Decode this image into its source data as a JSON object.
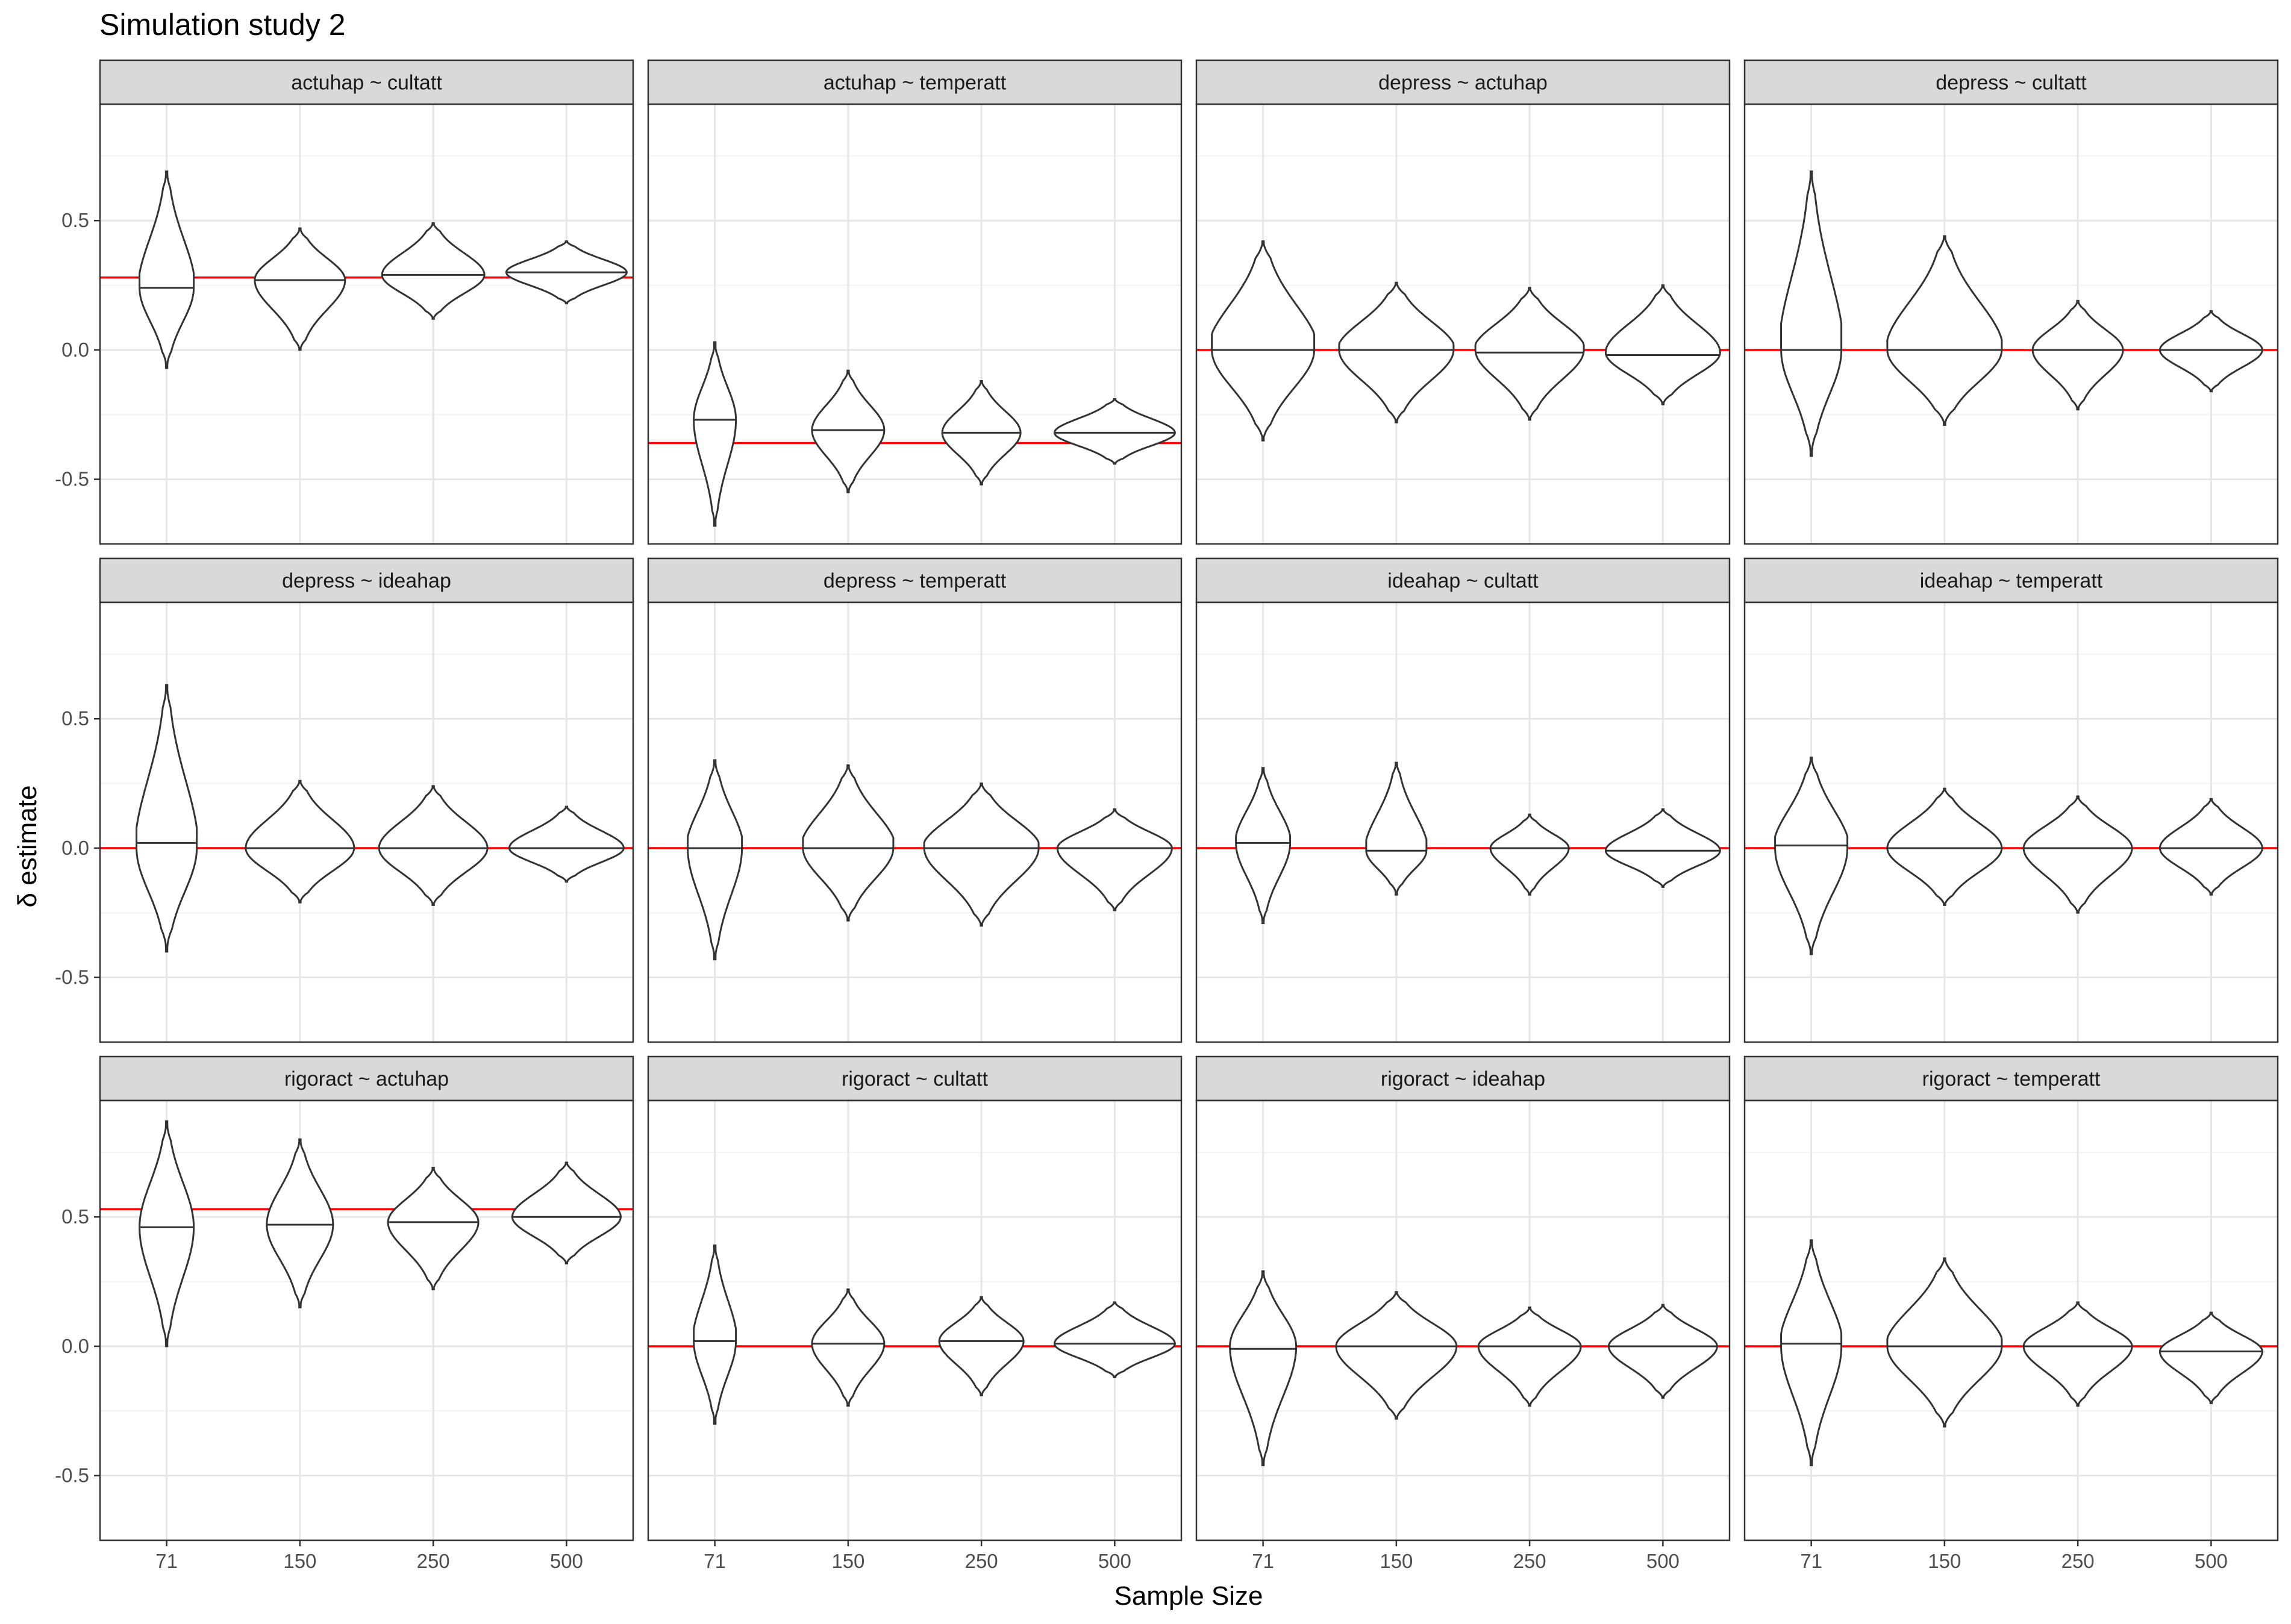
{
  "chart_data": {
    "type": "violin",
    "title": "Simulation study 2",
    "xlabel": "Sample Size",
    "ylabel": "δ estimate",
    "categories": [
      "71",
      "150",
      "250",
      "500"
    ],
    "ylim": [
      -0.75,
      0.95
    ],
    "yticks": [
      -0.5,
      0.0,
      0.5
    ],
    "ytick_labels": [
      "-0.5",
      "0.0",
      "0.5"
    ],
    "grid": true,
    "reference_line_color": "#ff0000",
    "panels": [
      {
        "label": "actuhap ~ cultatt",
        "ref": 0.28,
        "violins": [
          {
            "min": -0.07,
            "max": 0.69,
            "median": 0.24,
            "mode": 0.24,
            "skew": 0.2,
            "width": 0.45
          },
          {
            "min": 0.0,
            "max": 0.47,
            "median": 0.27,
            "mode": 0.27,
            "skew": 0.0,
            "width": 0.75
          },
          {
            "min": 0.12,
            "max": 0.49,
            "median": 0.29,
            "mode": 0.29,
            "skew": 0.0,
            "width": 0.85
          },
          {
            "min": 0.18,
            "max": 0.42,
            "median": 0.3,
            "mode": 0.3,
            "skew": 0.0,
            "width": 1.0
          }
        ]
      },
      {
        "label": "actuhap ~ temperatt",
        "ref": -0.36,
        "violins": [
          {
            "min": -0.68,
            "max": 0.03,
            "median": -0.27,
            "mode": -0.27,
            "skew": 0.0,
            "width": 0.35
          },
          {
            "min": -0.55,
            "max": -0.08,
            "median": -0.31,
            "mode": -0.31,
            "skew": 0.0,
            "width": 0.6
          },
          {
            "min": -0.52,
            "max": -0.12,
            "median": -0.32,
            "mode": -0.32,
            "skew": 0.0,
            "width": 0.65
          },
          {
            "min": -0.44,
            "max": -0.19,
            "median": -0.32,
            "mode": -0.32,
            "skew": 0.0,
            "width": 1.0
          }
        ]
      },
      {
        "label": "depress ~ actuhap",
        "ref": 0.0,
        "violins": [
          {
            "min": -0.35,
            "max": 0.42,
            "median": 0.0,
            "mode": 0.0,
            "skew": 0.3,
            "width": 0.85
          },
          {
            "min": -0.28,
            "max": 0.26,
            "median": 0.0,
            "mode": 0.0,
            "skew": 0.1,
            "width": 0.95
          },
          {
            "min": -0.27,
            "max": 0.24,
            "median": -0.01,
            "mode": 0.0,
            "skew": 0.1,
            "width": 0.9
          },
          {
            "min": -0.21,
            "max": 0.25,
            "median": -0.02,
            "mode": -0.01,
            "skew": 0.0,
            "width": 0.95
          }
        ]
      },
      {
        "label": "depress ~ cultatt",
        "ref": 0.0,
        "violins": [
          {
            "min": -0.41,
            "max": 0.69,
            "median": 0.0,
            "mode": 0.0,
            "skew": 0.3,
            "width": 0.5
          },
          {
            "min": -0.29,
            "max": 0.44,
            "median": 0.0,
            "mode": 0.0,
            "skew": 0.1,
            "width": 0.95
          },
          {
            "min": -0.23,
            "max": 0.19,
            "median": 0.0,
            "mode": 0.0,
            "skew": 0.0,
            "width": 0.75
          },
          {
            "min": -0.16,
            "max": 0.15,
            "median": 0.0,
            "mode": 0.0,
            "skew": 0.0,
            "width": 0.85
          }
        ]
      },
      {
        "label": "depress ~ ideahap",
        "ref": 0.0,
        "violins": [
          {
            "min": -0.4,
            "max": 0.63,
            "median": 0.02,
            "mode": 0.0,
            "skew": 0.2,
            "width": 0.5
          },
          {
            "min": -0.21,
            "max": 0.26,
            "median": 0.0,
            "mode": 0.0,
            "skew": 0.0,
            "width": 0.9
          },
          {
            "min": -0.22,
            "max": 0.24,
            "median": 0.0,
            "mode": 0.0,
            "skew": 0.0,
            "width": 0.9
          },
          {
            "min": -0.13,
            "max": 0.16,
            "median": 0.0,
            "mode": 0.0,
            "skew": 0.0,
            "width": 0.95
          }
        ]
      },
      {
        "label": "depress ~ temperatt",
        "ref": 0.0,
        "violins": [
          {
            "min": -0.43,
            "max": 0.34,
            "median": 0.0,
            "mode": 0.0,
            "skew": 0.2,
            "width": 0.45
          },
          {
            "min": -0.28,
            "max": 0.32,
            "median": 0.0,
            "mode": 0.0,
            "skew": 0.2,
            "width": 0.75
          },
          {
            "min": -0.3,
            "max": 0.25,
            "median": 0.0,
            "mode": 0.0,
            "skew": 0.1,
            "width": 0.95
          },
          {
            "min": -0.24,
            "max": 0.15,
            "median": 0.0,
            "mode": 0.0,
            "skew": 0.0,
            "width": 0.95
          }
        ]
      },
      {
        "label": "ideahap ~ cultatt",
        "ref": 0.0,
        "violins": [
          {
            "min": -0.29,
            "max": 0.31,
            "median": 0.02,
            "mode": 0.02,
            "skew": 0.1,
            "width": 0.45
          },
          {
            "min": -0.18,
            "max": 0.33,
            "median": -0.01,
            "mode": -0.01,
            "skew": 0.2,
            "width": 0.5
          },
          {
            "min": -0.18,
            "max": 0.13,
            "median": 0.0,
            "mode": 0.0,
            "skew": 0.0,
            "width": 0.65
          },
          {
            "min": -0.15,
            "max": 0.15,
            "median": -0.01,
            "mode": -0.01,
            "skew": 0.0,
            "width": 0.95
          }
        ]
      },
      {
        "label": "ideahap ~ temperatt",
        "ref": 0.0,
        "violins": [
          {
            "min": -0.41,
            "max": 0.35,
            "median": 0.01,
            "mode": 0.0,
            "skew": 0.2,
            "width": 0.6
          },
          {
            "min": -0.22,
            "max": 0.23,
            "median": 0.0,
            "mode": 0.0,
            "skew": 0.0,
            "width": 0.95
          },
          {
            "min": -0.25,
            "max": 0.2,
            "median": 0.0,
            "mode": 0.0,
            "skew": 0.0,
            "width": 0.9
          },
          {
            "min": -0.18,
            "max": 0.19,
            "median": 0.0,
            "mode": 0.0,
            "skew": 0.0,
            "width": 0.85
          }
        ]
      },
      {
        "label": "rigoract ~ actuhap",
        "ref": 0.53,
        "violins": [
          {
            "min": 0.0,
            "max": 0.87,
            "median": 0.46,
            "mode": 0.46,
            "skew": 0.0,
            "width": 0.45
          },
          {
            "min": 0.15,
            "max": 0.8,
            "median": 0.47,
            "mode": 0.47,
            "skew": 0.0,
            "width": 0.55
          },
          {
            "min": 0.22,
            "max": 0.69,
            "median": 0.48,
            "mode": 0.48,
            "skew": 0.0,
            "width": 0.75
          },
          {
            "min": 0.32,
            "max": 0.71,
            "median": 0.5,
            "mode": 0.5,
            "skew": 0.0,
            "width": 0.9
          }
        ]
      },
      {
        "label": "rigoract ~ cultatt",
        "ref": 0.0,
        "violins": [
          {
            "min": -0.3,
            "max": 0.39,
            "median": 0.02,
            "mode": 0.02,
            "skew": 0.2,
            "width": 0.35
          },
          {
            "min": -0.23,
            "max": 0.22,
            "median": 0.01,
            "mode": 0.01,
            "skew": 0.0,
            "width": 0.6
          },
          {
            "min": -0.19,
            "max": 0.19,
            "median": 0.02,
            "mode": 0.02,
            "skew": 0.0,
            "width": 0.7
          },
          {
            "min": -0.12,
            "max": 0.17,
            "median": 0.01,
            "mode": 0.01,
            "skew": 0.0,
            "width": 1.0
          }
        ]
      },
      {
        "label": "rigoract ~ ideahap",
        "ref": 0.0,
        "violins": [
          {
            "min": -0.46,
            "max": 0.29,
            "median": -0.01,
            "mode": 0.0,
            "skew": 0.0,
            "width": 0.55
          },
          {
            "min": -0.28,
            "max": 0.21,
            "median": 0.0,
            "mode": 0.0,
            "skew": 0.0,
            "width": 1.0
          },
          {
            "min": -0.23,
            "max": 0.15,
            "median": 0.0,
            "mode": 0.0,
            "skew": 0.0,
            "width": 0.85
          },
          {
            "min": -0.2,
            "max": 0.16,
            "median": 0.0,
            "mode": 0.0,
            "skew": 0.0,
            "width": 0.9
          }
        ]
      },
      {
        "label": "rigoract ~ temperatt",
        "ref": 0.0,
        "violins": [
          {
            "min": -0.46,
            "max": 0.41,
            "median": 0.01,
            "mode": 0.0,
            "skew": 0.2,
            "width": 0.5
          },
          {
            "min": -0.31,
            "max": 0.34,
            "median": 0.0,
            "mode": 0.0,
            "skew": 0.1,
            "width": 0.95
          },
          {
            "min": -0.23,
            "max": 0.17,
            "median": 0.0,
            "mode": 0.0,
            "skew": 0.0,
            "width": 0.9
          },
          {
            "min": -0.22,
            "max": 0.13,
            "median": -0.02,
            "mode": -0.02,
            "skew": 0.0,
            "width": 0.85
          }
        ]
      }
    ]
  }
}
